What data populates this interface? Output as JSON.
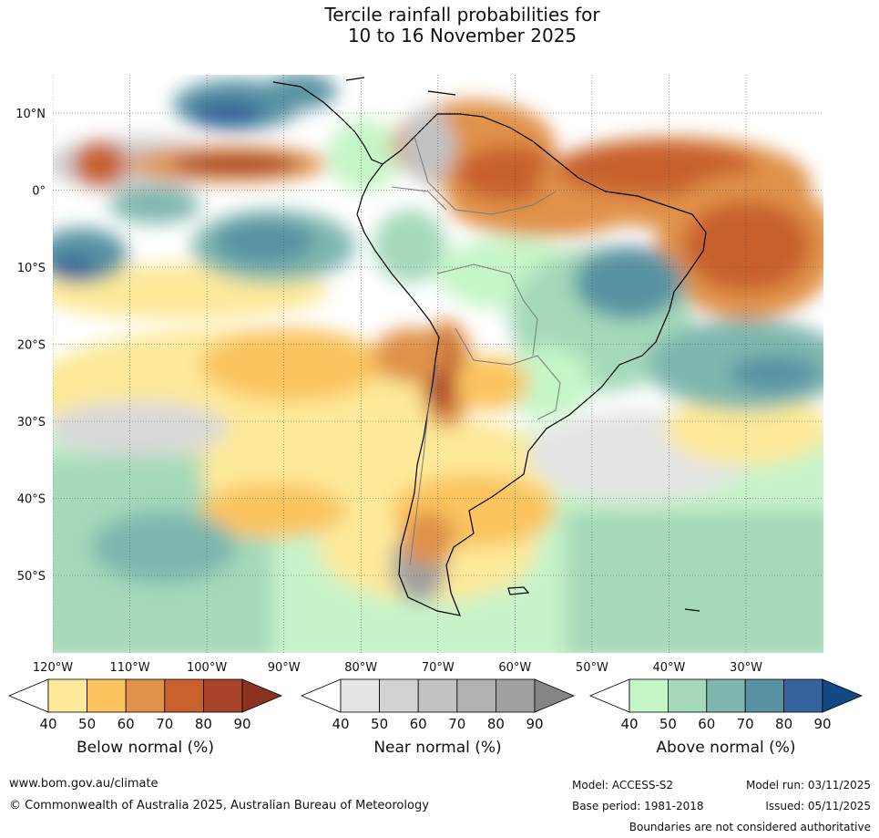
{
  "title": {
    "line1": "Tercile rainfall probabilities for",
    "line2": "10 to 16 November 2025"
  },
  "map": {
    "lat_labels": [
      "10°N",
      "0°",
      "10°S",
      "20°S",
      "30°S",
      "40°S",
      "50°S"
    ],
    "lon_labels": [
      "120°W",
      "110°W",
      "100°W",
      "90°W",
      "80°W",
      "70°W",
      "60°W",
      "50°W",
      "40°W",
      "30°W"
    ],
    "lat_values": [
      10,
      0,
      -10,
      -20,
      -30,
      -40,
      -50
    ],
    "lon_values": [
      -120,
      -110,
      -100,
      -90,
      -80,
      -70,
      -60,
      -50,
      -40,
      -30
    ]
  },
  "colorbars": [
    {
      "name": "below",
      "label": "Below normal (%)",
      "ticks": [
        "40",
        "50",
        "60",
        "70",
        "80",
        "90"
      ],
      "colors": [
        "#ffffff",
        "#fde99a",
        "#fbc45f",
        "#e0924a",
        "#c8612e",
        "#a9442a",
        "#8a3320"
      ]
    },
    {
      "name": "near",
      "label": "Near normal (%)",
      "ticks": [
        "40",
        "50",
        "60",
        "70",
        "80",
        "90"
      ],
      "colors": [
        "#ffffff",
        "#e4e4e4",
        "#d2d2d2",
        "#c2c2c2",
        "#b1b1b1",
        "#a0a0a0",
        "#858585"
      ]
    },
    {
      "name": "above",
      "label": "Above normal (%)",
      "ticks": [
        "40",
        "50",
        "60",
        "70",
        "80",
        "90"
      ],
      "colors": [
        "#ffffff",
        "#c5f6c7",
        "#a4d9b9",
        "#7fb7af",
        "#5993a3",
        "#34649b",
        "#114a83"
      ]
    }
  ],
  "footer": {
    "website": "www.bom.gov.au/climate",
    "copyright": "© Commonwealth of Australia 2025, Australian Bureau of Meteorology",
    "model": "Model: ACCESS-S2",
    "base_period": "Base period: 1981-2018",
    "model_run": "Model run: 03/11/2025",
    "issued": "Issued: 05/11/2025",
    "disclaimer": "Boundaries are not considered authoritative"
  }
}
